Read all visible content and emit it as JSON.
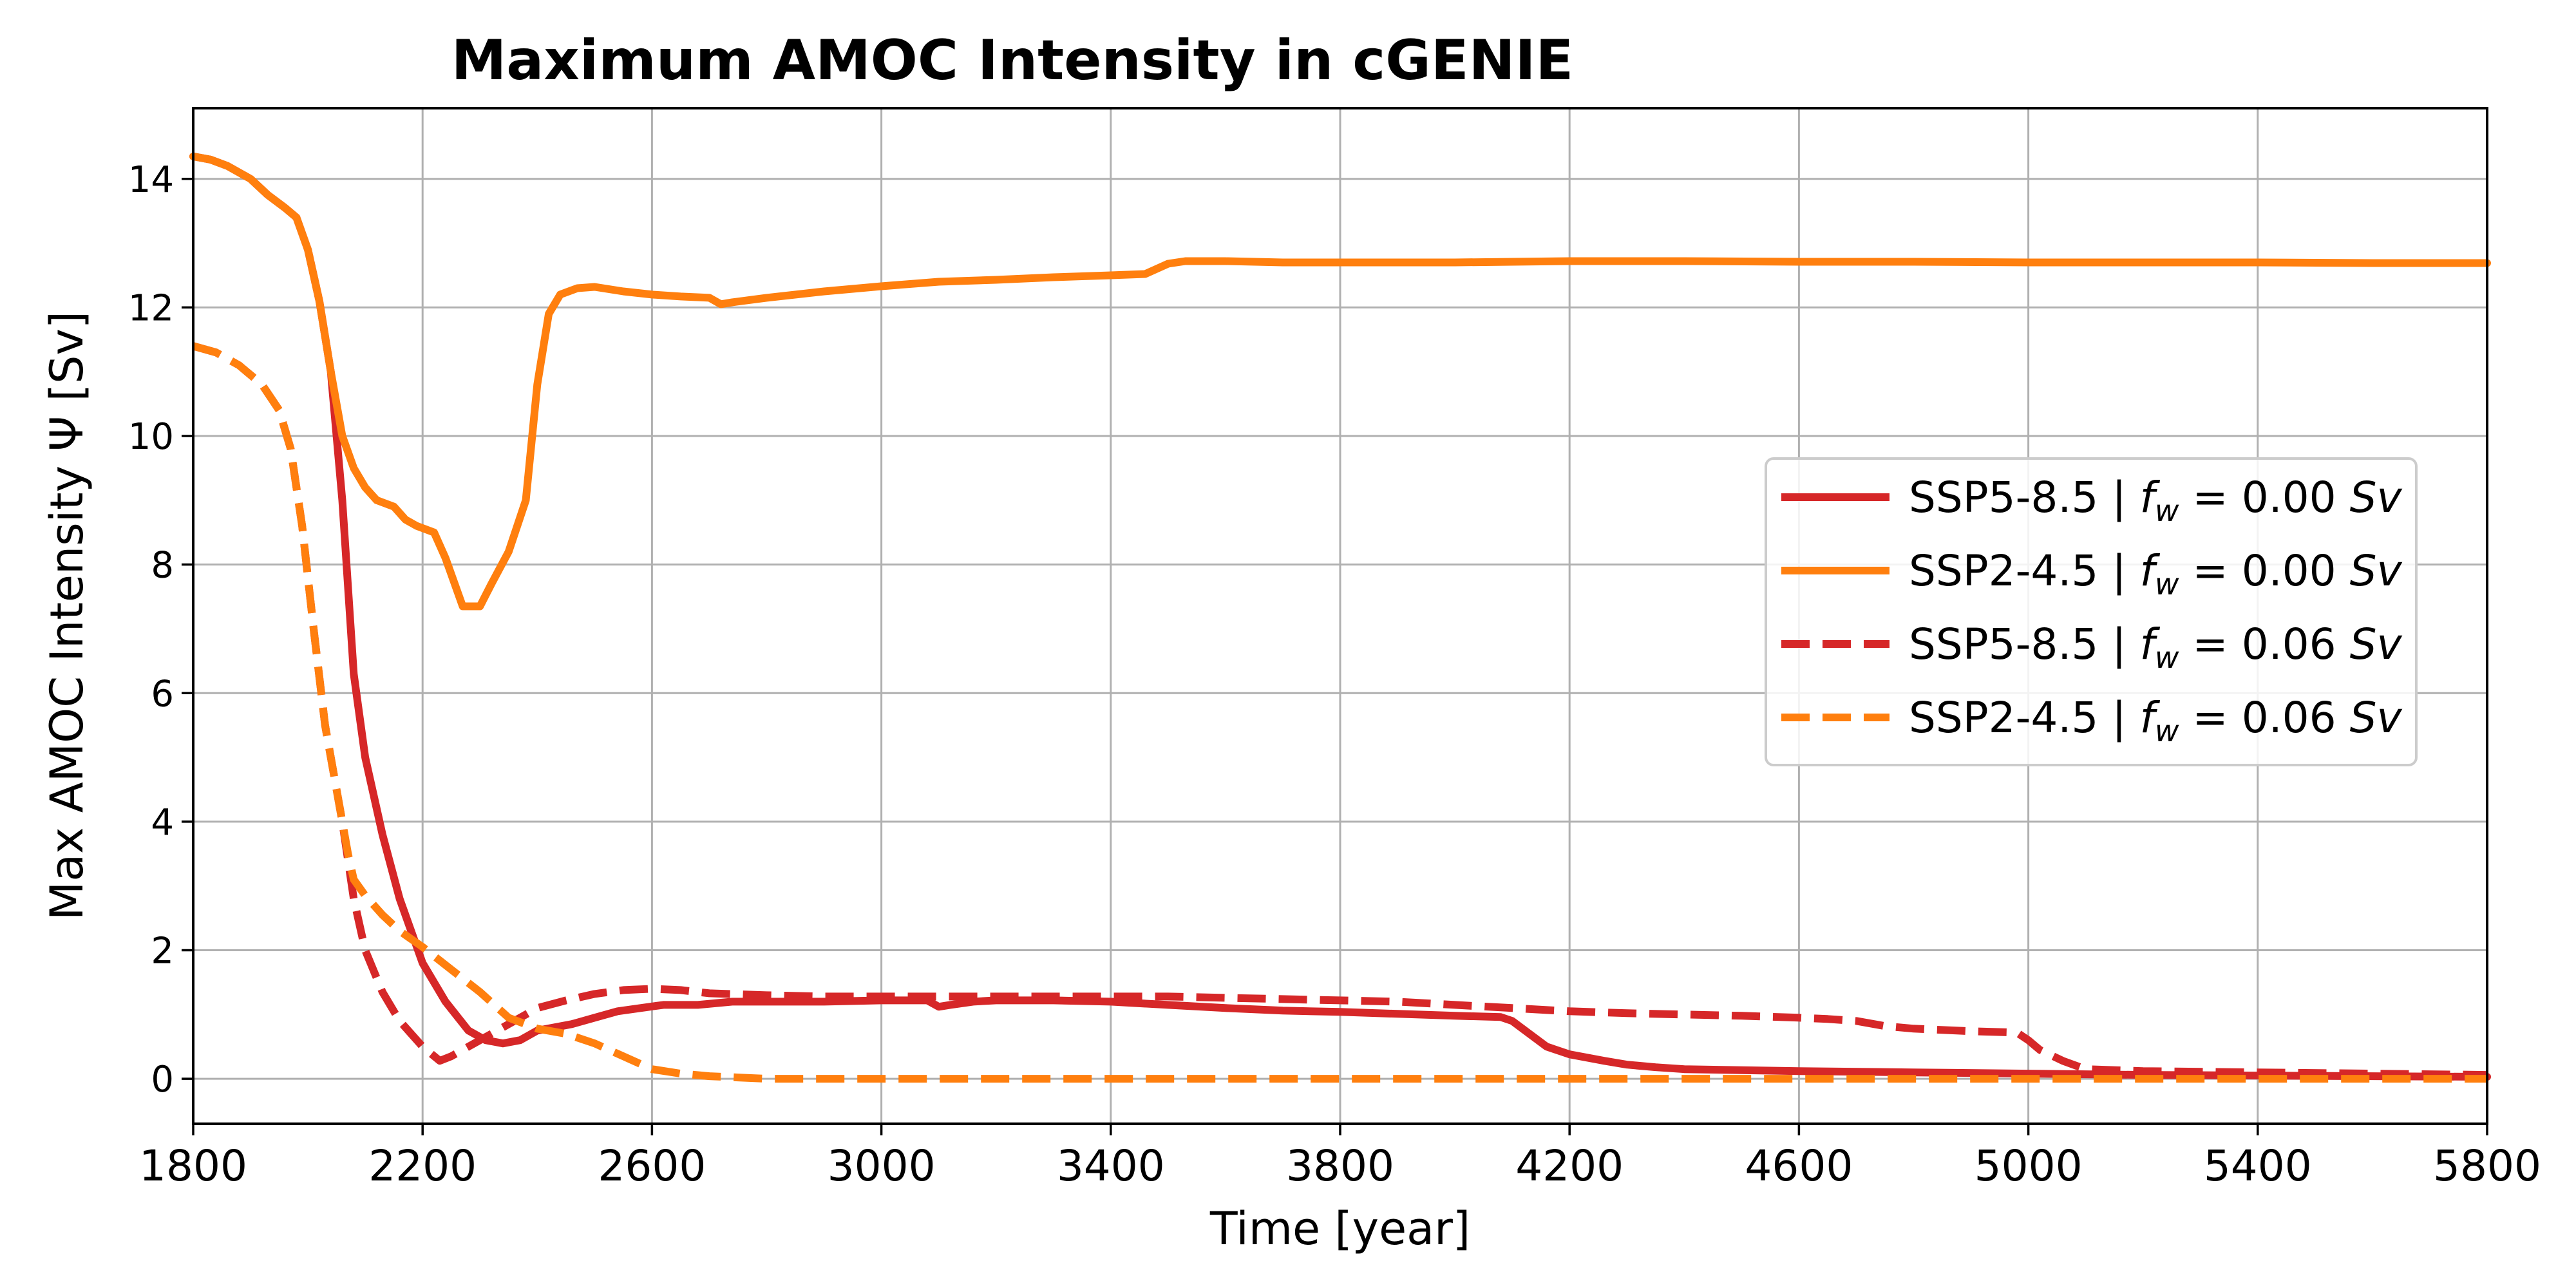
{
  "chart_data": {
    "type": "line",
    "title": "Maximum AMOC Intensity in cGENIE",
    "xlabel": "Time [year]",
    "ylabel": "Max AMOC Intensity Ψ [Sv]",
    "xlim": [
      1800,
      5800
    ],
    "ylim": [
      -0.7,
      15.1
    ],
    "xticks": [
      1800,
      2200,
      2600,
      3000,
      3400,
      3800,
      4200,
      4600,
      5000,
      5400,
      5800
    ],
    "yticks": [
      0,
      2,
      4,
      6,
      8,
      10,
      12,
      14
    ],
    "grid": true,
    "legend_position": "center-right",
    "series": [
      {
        "name": "SSP5-8.5 | f_w = 0.00 Sv",
        "legend_prefix": "SSP5-8.5 | ",
        "legend_math": "f",
        "legend_sub": "w",
        "legend_value": " = 0.00 ",
        "legend_unit": "Sv",
        "color": "#d62728",
        "dash": "solid",
        "x": [
          1800,
          1830,
          1860,
          1900,
          1930,
          1960,
          1980,
          2000,
          2020,
          2040,
          2060,
          2080,
          2100,
          2130,
          2160,
          2200,
          2240,
          2280,
          2310,
          2340,
          2370,
          2400,
          2430,
          2460,
          2500,
          2540,
          2580,
          2620,
          2680,
          2740,
          2800,
          2900,
          3000,
          3080,
          3100,
          3120,
          3160,
          3200,
          3300,
          3400,
          3500,
          3600,
          3700,
          3800,
          3900,
          4000,
          4080,
          4100,
          4130,
          4160,
          4200,
          4260,
          4300,
          4350,
          4400,
          4600,
          4800,
          5000,
          5100,
          5200,
          5400,
          5600,
          5800
        ],
        "y": [
          14.35,
          14.3,
          14.2,
          14.0,
          13.75,
          13.55,
          13.4,
          12.9,
          12.1,
          11.0,
          9.0,
          6.3,
          5.0,
          3.8,
          2.8,
          1.8,
          1.2,
          0.75,
          0.6,
          0.55,
          0.6,
          0.75,
          0.8,
          0.85,
          0.95,
          1.05,
          1.1,
          1.15,
          1.15,
          1.2,
          1.2,
          1.2,
          1.22,
          1.22,
          1.12,
          1.15,
          1.2,
          1.22,
          1.22,
          1.2,
          1.15,
          1.1,
          1.06,
          1.04,
          1.01,
          0.98,
          0.96,
          0.9,
          0.7,
          0.5,
          0.38,
          0.28,
          0.22,
          0.18,
          0.15,
          0.12,
          0.1,
          0.08,
          0.07,
          0.06,
          0.05,
          0.04,
          0.03
        ]
      },
      {
        "name": "SSP2-4.5 | f_w = 0.00 Sv",
        "legend_prefix": "SSP2-4.5 | ",
        "legend_math": "f",
        "legend_sub": "w",
        "legend_value": " = 0.00 ",
        "legend_unit": "Sv",
        "color": "#ff7f0e",
        "dash": "solid",
        "x": [
          1800,
          1830,
          1860,
          1900,
          1930,
          1960,
          1980,
          2000,
          2020,
          2040,
          2060,
          2080,
          2100,
          2120,
          2150,
          2170,
          2190,
          2220,
          2240,
          2270,
          2300,
          2320,
          2350,
          2380,
          2400,
          2420,
          2440,
          2470,
          2500,
          2550,
          2600,
          2650,
          2700,
          2720,
          2740,
          2800,
          2900,
          3000,
          3100,
          3200,
          3300,
          3400,
          3460,
          3480,
          3500,
          3530,
          3560,
          3600,
          3700,
          3800,
          4000,
          4200,
          4400,
          4600,
          4800,
          5000,
          5200,
          5400,
          5600,
          5800
        ],
        "y": [
          14.35,
          14.3,
          14.2,
          14.0,
          13.75,
          13.55,
          13.4,
          12.9,
          12.1,
          11.0,
          10.0,
          9.5,
          9.2,
          9.0,
          8.9,
          8.7,
          8.6,
          8.5,
          8.1,
          7.35,
          7.35,
          7.7,
          8.2,
          9.0,
          10.8,
          11.9,
          12.2,
          12.3,
          12.32,
          12.25,
          12.2,
          12.17,
          12.15,
          12.05,
          12.08,
          12.15,
          12.25,
          12.33,
          12.4,
          12.43,
          12.47,
          12.5,
          12.52,
          12.6,
          12.68,
          12.72,
          12.72,
          12.72,
          12.7,
          12.7,
          12.7,
          12.72,
          12.72,
          12.71,
          12.71,
          12.7,
          12.7,
          12.7,
          12.69,
          12.69
        ]
      },
      {
        "name": "SSP5-8.5 | f_w = 0.06 Sv",
        "legend_prefix": "SSP5-8.5 | ",
        "legend_math": "f",
        "legend_sub": "w",
        "legend_value": " = 0.06 ",
        "legend_unit": "Sv",
        "color": "#d62728",
        "dash": "dashed",
        "x": [
          1800,
          1840,
          1880,
          1920,
          1950,
          1970,
          1990,
          2010,
          2030,
          2050,
          2060,
          2070,
          2080,
          2100,
          2130,
          2160,
          2200,
          2230,
          2250,
          2280,
          2310,
          2350,
          2400,
          2450,
          2500,
          2550,
          2600,
          2650,
          2700,
          2800,
          2900,
          3000,
          3100,
          3200,
          3300,
          3400,
          3500,
          3600,
          3700,
          3800,
          3900,
          4000,
          4100,
          4200,
          4300,
          4400,
          4500,
          4600,
          4650,
          4700,
          4750,
          4800,
          4900,
          4980,
          5000,
          5020,
          5060,
          5100,
          5200,
          5400,
          5600,
          5800
        ],
        "y": [
          11.4,
          11.3,
          11.1,
          10.8,
          10.4,
          9.8,
          8.6,
          7.0,
          5.5,
          4.5,
          4.0,
          3.4,
          2.8,
          2.0,
          1.35,
          0.9,
          0.5,
          0.28,
          0.35,
          0.5,
          0.65,
          0.85,
          1.1,
          1.22,
          1.32,
          1.38,
          1.4,
          1.38,
          1.33,
          1.3,
          1.28,
          1.28,
          1.28,
          1.28,
          1.28,
          1.28,
          1.28,
          1.26,
          1.24,
          1.22,
          1.2,
          1.15,
          1.1,
          1.05,
          1.02,
          1.0,
          0.98,
          0.95,
          0.93,
          0.9,
          0.82,
          0.78,
          0.74,
          0.72,
          0.6,
          0.45,
          0.28,
          0.15,
          0.12,
          0.1,
          0.08,
          0.06
        ]
      },
      {
        "name": "SSP2-4.5 | f_w = 0.06 Sv",
        "legend_prefix": "SSP2-4.5 | ",
        "legend_math": "f",
        "legend_sub": "w",
        "legend_value": " = 0.06 ",
        "legend_unit": "Sv",
        "color": "#ff7f0e",
        "dash": "dashed",
        "x": [
          1800,
          1840,
          1880,
          1920,
          1950,
          1970,
          1990,
          2010,
          2030,
          2050,
          2060,
          2070,
          2080,
          2100,
          2130,
          2160,
          2200,
          2250,
          2300,
          2350,
          2400,
          2450,
          2500,
          2550,
          2600,
          2650,
          2700,
          2800,
          3000,
          3500,
          4000,
          4500,
          5000,
          5400,
          5800
        ],
        "y": [
          11.4,
          11.3,
          11.1,
          10.8,
          10.4,
          9.8,
          8.6,
          7.0,
          5.5,
          4.5,
          4.0,
          3.5,
          3.1,
          2.85,
          2.55,
          2.3,
          2.05,
          1.7,
          1.35,
          0.95,
          0.78,
          0.7,
          0.55,
          0.35,
          0.15,
          0.08,
          0.04,
          0.0,
          0.0,
          0.0,
          0.0,
          0.0,
          0.0,
          0.0,
          0.0
        ]
      }
    ]
  }
}
